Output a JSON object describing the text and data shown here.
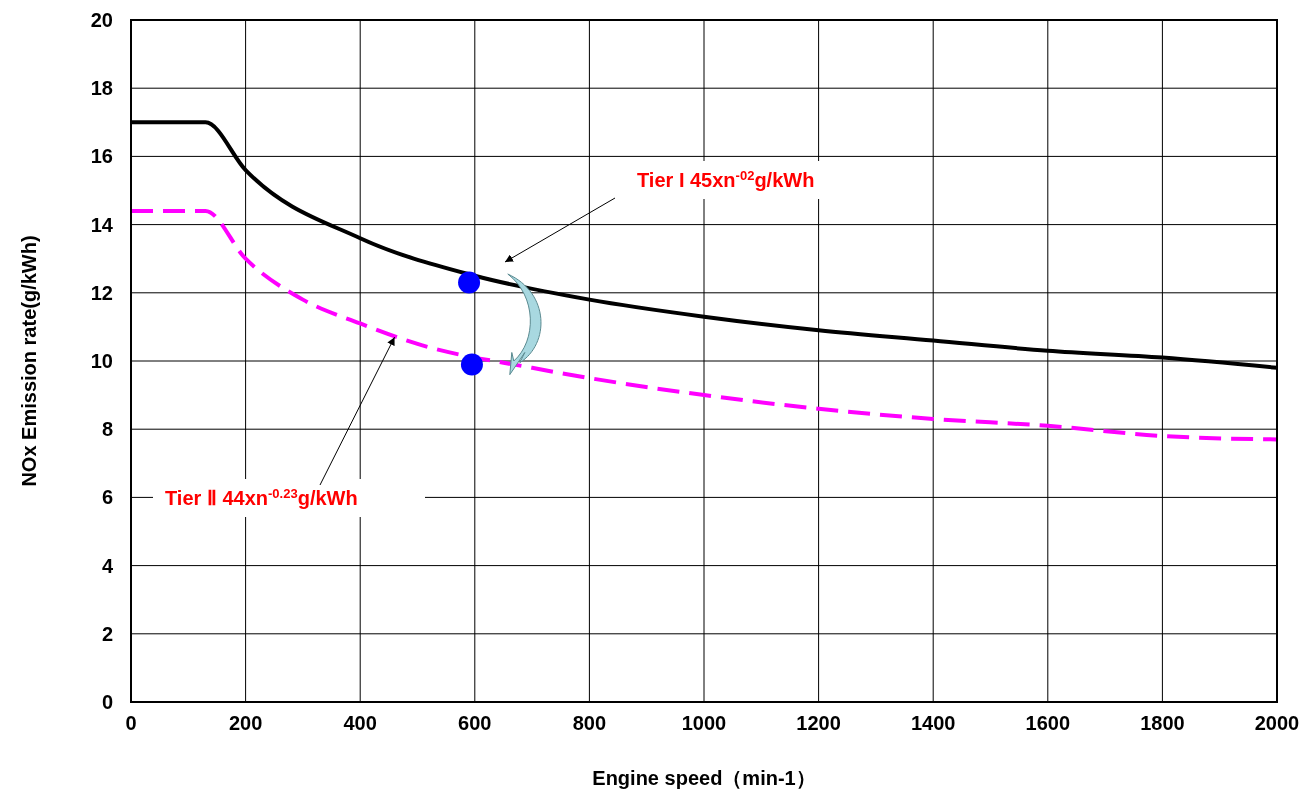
{
  "chart_data": {
    "type": "line",
    "xlabel": "Engine speed（min-1）",
    "ylabel": "NOx Emission rate(g/kWh)",
    "xlim": [
      0,
      2000
    ],
    "xticks": [
      0,
      200,
      400,
      600,
      800,
      1000,
      1200,
      1400,
      1600,
      1800,
      2000
    ],
    "ylim": [
      0,
      20
    ],
    "yticks": [
      0,
      2,
      4,
      6,
      8,
      10,
      12,
      14,
      16,
      18,
      20
    ],
    "grid": true,
    "series": [
      {
        "color": "#000000",
        "line_style": "solid",
        "x": [
          0,
          130,
          200,
          400,
          600,
          800,
          1000,
          1200,
          1400,
          1600,
          1800,
          2000
        ],
        "values": [
          17,
          17,
          15.6,
          13.6,
          12.5,
          11.8,
          11.3,
          10.9,
          10.6,
          10.3,
          10.1,
          9.8
        ]
      },
      {
        "color": "#ff00ff",
        "line_style": "dashed",
        "x": [
          0,
          130,
          200,
          300,
          400,
          500,
          700,
          800,
          1000,
          1200,
          1400,
          1600,
          1800,
          2000
        ],
        "values": [
          14.4,
          14.4,
          13.0,
          11.8,
          11.1,
          10.5,
          9.8,
          9.5,
          9.0,
          8.6,
          8.3,
          8.1,
          7.8,
          7.7
        ]
      },
      {
        "type": "scatter",
        "color": "#0000ff",
        "x": [
          590,
          595
        ],
        "values": [
          12.3,
          9.9
        ]
      }
    ],
    "annotations": [
      "Tier I 45xn$^{-02}$g/kWh",
      {
        "text": "Tier Ⅱ 44xn$^{-0.23}$g/kWh",
        "x": 460,
        "y": 10.7
      }
    ]
  }
}
